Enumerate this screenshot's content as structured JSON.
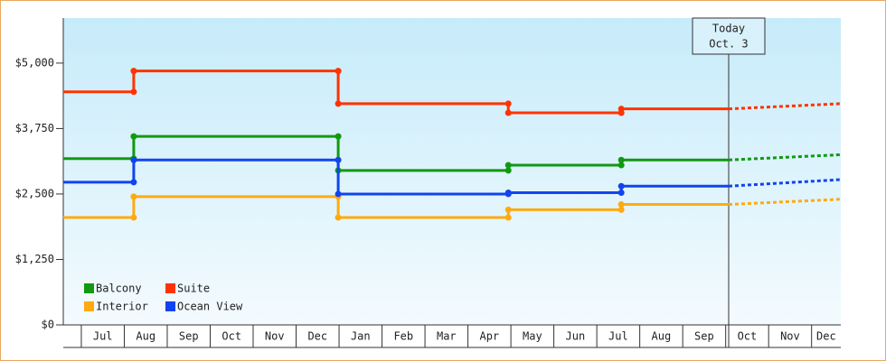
{
  "chart_data": {
    "type": "step",
    "categories": [
      "Jul",
      "Aug",
      "Sep",
      "Oct",
      "Nov",
      "Dec",
      "Jan",
      "Feb",
      "Mar",
      "Apr",
      "May",
      "Jun",
      "Jul",
      "Aug",
      "Sep",
      "Oct",
      "Nov",
      "Dec"
    ],
    "xlim": [
      -0.42,
      17.68
    ],
    "x": [
      -0.42,
      1.22,
      5.98,
      9.94,
      12.57
    ],
    "series": [
      {
        "name": "Balcony",
        "color": "#119911",
        "values": [
          3175,
          3600,
          2950,
          3050,
          3150
        ],
        "forecast": 3250
      },
      {
        "name": "Suite",
        "color": "#ff3300",
        "values": [
          4450,
          4850,
          4225,
          4050,
          4125
        ],
        "forecast": 4225
      },
      {
        "name": "Interior",
        "color": "#ffaa11",
        "values": [
          2050,
          2450,
          2050,
          2200,
          2300
        ],
        "forecast": 2400
      },
      {
        "name": "Ocean View",
        "color": "#1144ee",
        "values": [
          2725,
          3150,
          2500,
          2525,
          2650
        ],
        "forecast": 2775
      }
    ],
    "today": {
      "x": 15.07,
      "label": [
        "Today",
        "Oct. 3"
      ]
    },
    "ylim": [
      0,
      5860
    ],
    "yticks": [
      {
        "value": 0,
        "label": "$0"
      },
      {
        "value": 1250,
        "label": "$1,250"
      },
      {
        "value": 2500,
        "label": "$2,500"
      },
      {
        "value": 3750,
        "label": "$3,750"
      },
      {
        "value": 5000,
        "label": "$5,000"
      }
    ]
  }
}
